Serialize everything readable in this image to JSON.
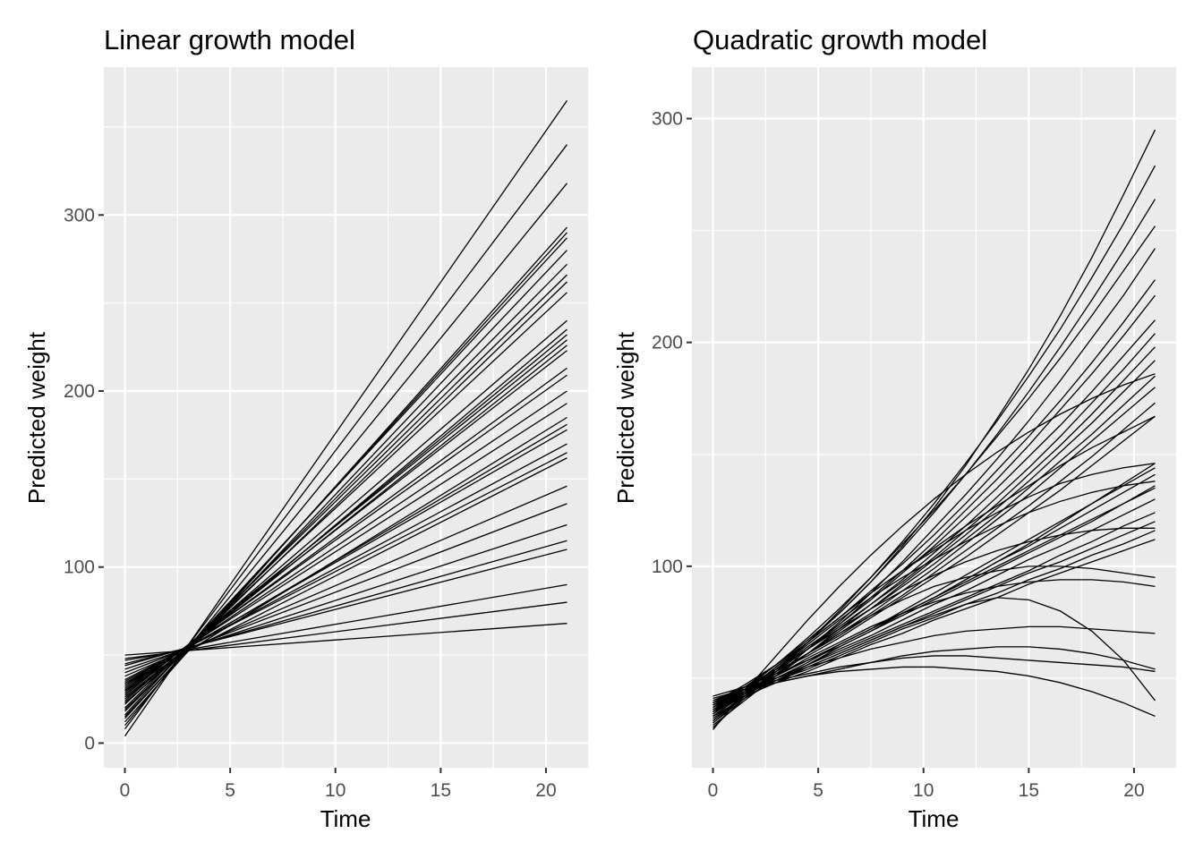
{
  "chart_data": [
    {
      "type": "line",
      "title": "Linear growth model",
      "xlabel": "Time",
      "ylabel": "Predicted weight",
      "xlim": [
        -1,
        22
      ],
      "ylim": [
        -14,
        384
      ],
      "xticks": [
        0,
        5,
        10,
        15,
        20
      ],
      "yticks": [
        0,
        100,
        200,
        300
      ],
      "xtick_labels": [
        "0",
        "5",
        "10",
        "15",
        "20"
      ],
      "ytick_labels": [
        "0",
        "100",
        "200",
        "300"
      ],
      "grid": true,
      "legend": "none",
      "x": [
        0,
        21
      ],
      "series": [
        {
          "values": [
            4,
            365
          ]
        },
        {
          "values": [
            8,
            340
          ]
        },
        {
          "values": [
            10,
            318
          ]
        },
        {
          "values": [
            12,
            293
          ]
        },
        {
          "values": [
            14,
            290
          ]
        },
        {
          "values": [
            16,
            287
          ]
        },
        {
          "values": [
            15,
            280
          ]
        },
        {
          "values": [
            18,
            272
          ]
        },
        {
          "values": [
            20,
            266
          ]
        },
        {
          "values": [
            19,
            262
          ]
        },
        {
          "values": [
            22,
            256
          ]
        },
        {
          "values": [
            24,
            240
          ]
        },
        {
          "values": [
            23,
            235
          ]
        },
        {
          "values": [
            25,
            232
          ]
        },
        {
          "values": [
            27,
            229
          ]
        },
        {
          "values": [
            26,
            226
          ]
        },
        {
          "values": [
            28,
            223
          ]
        },
        {
          "values": [
            29,
            213
          ]
        },
        {
          "values": [
            30,
            209
          ]
        },
        {
          "values": [
            31,
            200
          ]
        },
        {
          "values": [
            32,
            193
          ]
        },
        {
          "values": [
            30,
            185
          ]
        },
        {
          "values": [
            33,
            181
          ]
        },
        {
          "values": [
            34,
            178
          ]
        },
        {
          "values": [
            35,
            170
          ]
        },
        {
          "values": [
            36,
            165
          ]
        },
        {
          "values": [
            34,
            162
          ]
        },
        {
          "values": [
            38,
            146
          ]
        },
        {
          "values": [
            40,
            136
          ]
        },
        {
          "values": [
            42,
            124
          ]
        },
        {
          "values": [
            44,
            115
          ]
        },
        {
          "values": [
            45,
            110
          ]
        },
        {
          "values": [
            47,
            90
          ]
        },
        {
          "values": [
            48,
            80
          ]
        },
        {
          "values": [
            50,
            68
          ]
        }
      ]
    },
    {
      "type": "line",
      "title": "Quadratic growth model",
      "xlabel": "Time",
      "ylabel": "Predicted weight",
      "xlim": [
        -1,
        22
      ],
      "ylim": [
        10,
        323
      ],
      "xticks": [
        0,
        5,
        10,
        15,
        20
      ],
      "yticks": [
        100,
        200,
        300
      ],
      "xtick_labels": [
        "0",
        "5",
        "10",
        "15",
        "20"
      ],
      "ytick_labels": [
        "100",
        "200",
        "300"
      ],
      "grid": true,
      "legend": "none",
      "x": [
        0,
        1.5,
        3,
        4.5,
        6,
        7.5,
        9,
        10.5,
        12,
        13.5,
        15,
        16.5,
        18,
        19.5,
        21
      ],
      "series": [
        {
          "values": [
            39,
            47,
            56,
            67,
            79,
            93,
            109,
            126,
            145,
            166,
            188,
            212,
            238,
            266,
            295
          ]
        },
        {
          "values": [
            30,
            41,
            53,
            66,
            80,
            95,
            111,
            128,
            146,
            165,
            185,
            206,
            229,
            253,
            279
          ]
        },
        {
          "values": [
            34,
            44,
            55,
            66,
            79,
            93,
            108,
            124,
            141,
            159,
            178,
            198,
            219,
            241,
            264
          ]
        },
        {
          "values": [
            35,
            45,
            56,
            68,
            81,
            95,
            110,
            125,
            141,
            158,
            175,
            193,
            212,
            232,
            252
          ]
        },
        {
          "values": [
            29,
            40,
            51,
            63,
            75,
            88,
            102,
            117,
            132,
            148,
            165,
            183,
            202,
            221,
            242
          ]
        },
        {
          "values": [
            37,
            46,
            56,
            66,
            77,
            89,
            101,
            114,
            128,
            143,
            158,
            174,
            191,
            209,
            228
          ]
        },
        {
          "values": [
            33,
            43,
            53,
            63,
            74,
            86,
            98,
            111,
            125,
            139,
            154,
            170,
            186,
            203,
            221
          ]
        },
        {
          "values": [
            36,
            45,
            54,
            64,
            74,
            85,
            97,
            109,
            122,
            135,
            149,
            163,
            178,
            194,
            210
          ]
        },
        {
          "values": [
            32,
            42,
            51,
            61,
            72,
            83,
            94,
            106,
            118,
            131,
            144,
            158,
            173,
            188,
            204
          ]
        },
        {
          "values": [
            38,
            46,
            54,
            63,
            73,
            83,
            93,
            104,
            116,
            128,
            141,
            154,
            168,
            183,
            198
          ]
        },
        {
          "values": [
            34,
            43,
            52,
            61,
            71,
            81,
            92,
            103,
            114,
            126,
            138,
            151,
            164,
            178,
            192
          ]
        },
        {
          "values": [
            39,
            46,
            54,
            63,
            72,
            81,
            91,
            101,
            112,
            123,
            135,
            147,
            159,
            172,
            185
          ]
        },
        {
          "values": [
            36,
            44,
            52,
            61,
            70,
            79,
            89,
            99,
            110,
            121,
            132,
            144,
            156,
            168,
            180
          ]
        },
        {
          "values": [
            37,
            45,
            53,
            61,
            69,
            78,
            87,
            97,
            107,
            117,
            127,
            138,
            149,
            161,
            173
          ]
        },
        {
          "values": [
            38,
            45,
            53,
            60,
            68,
            77,
            86,
            95,
            104,
            114,
            124,
            134,
            145,
            156,
            167
          ]
        },
        {
          "values": [
            27,
            44,
            60,
            76,
            91,
            105,
            118,
            130,
            141,
            151,
            160,
            168,
            175,
            181,
            186
          ]
        },
        {
          "values": [
            31,
            43,
            55,
            66,
            77,
            88,
            98,
            108,
            118,
            127,
            136,
            145,
            153,
            160,
            167
          ]
        },
        {
          "values": [
            40,
            46,
            52,
            58,
            65,
            72,
            79,
            86,
            94,
            102,
            110,
            119,
            128,
            137,
            146
          ]
        },
        {
          "values": [
            35,
            42,
            50,
            57,
            65,
            72,
            80,
            88,
            96,
            104,
            112,
            120,
            128,
            136,
            144
          ]
        },
        {
          "values": [
            37,
            44,
            51,
            58,
            65,
            72,
            79,
            86,
            94,
            102,
            109,
            117,
            125,
            133,
            141
          ]
        },
        {
          "values": [
            39,
            45,
            51,
            58,
            64,
            71,
            78,
            85,
            92,
            99,
            106,
            113,
            120,
            128,
            136
          ]
        },
        {
          "values": [
            33,
            41,
            49,
            56,
            64,
            71,
            79,
            86,
            93,
            100,
            107,
            114,
            121,
            128,
            135
          ]
        },
        {
          "values": [
            36,
            43,
            50,
            56,
            63,
            69,
            76,
            83,
            89,
            96,
            103,
            109,
            116,
            123,
            130
          ]
        },
        {
          "values": [
            38,
            44,
            50,
            56,
            62,
            68,
            74,
            80,
            86,
            92,
            98,
            105,
            111,
            118,
            124
          ]
        },
        {
          "values": [
            35,
            42,
            48,
            55,
            61,
            67,
            73,
            79,
            85,
            91,
            97,
            102,
            108,
            114,
            120
          ]
        },
        {
          "values": [
            37,
            43,
            49,
            54,
            60,
            66,
            72,
            77,
            83,
            88,
            94,
            99,
            105,
            110,
            116
          ]
        },
        {
          "values": [
            36,
            42,
            48,
            53,
            59,
            65,
            70,
            76,
            81,
            86,
            92,
            97,
            102,
            107,
            112
          ]
        },
        {
          "values": [
            28,
            41,
            54,
            66,
            77,
            88,
            98,
            107,
            116,
            124,
            131,
            137,
            141,
            144,
            146
          ]
        },
        {
          "values": [
            30,
            42,
            54,
            65,
            76,
            86,
            95,
            103,
            111,
            118,
            124,
            129,
            133,
            136,
            138
          ]
        },
        {
          "values": [
            31,
            42,
            53,
            63,
            72,
            81,
            89,
            96,
            102,
            107,
            111,
            114,
            116,
            117,
            117
          ]
        },
        {
          "values": [
            33,
            43,
            52,
            61,
            70,
            78,
            85,
            91,
            95,
            98,
            100,
            100,
            99,
            97,
            95
          ]
        },
        {
          "values": [
            35,
            43,
            51,
            59,
            66,
            73,
            79,
            84,
            88,
            91,
            93,
            94,
            94,
            93,
            91
          ]
        },
        {
          "values": [
            40,
            45,
            50,
            55,
            59,
            63,
            66,
            69,
            71,
            72,
            73,
            73,
            72,
            71,
            70
          ]
        },
        {
          "values": [
            38,
            44,
            49,
            55,
            61,
            67,
            73,
            78,
            83,
            86,
            85,
            80,
            71,
            58,
            40
          ]
        },
        {
          "values": [
            42,
            46,
            49,
            52,
            55,
            57,
            59,
            60,
            60,
            59,
            58,
            57,
            56,
            55,
            53
          ]
        },
        {
          "values": [
            41,
            45,
            48,
            51,
            54,
            57,
            60,
            62,
            63,
            64,
            64,
            63,
            61,
            58,
            54
          ]
        },
        {
          "values": [
            39,
            44,
            48,
            51,
            53,
            54,
            55,
            55,
            54,
            53,
            51,
            48,
            44,
            39,
            33
          ]
        }
      ]
    }
  ]
}
